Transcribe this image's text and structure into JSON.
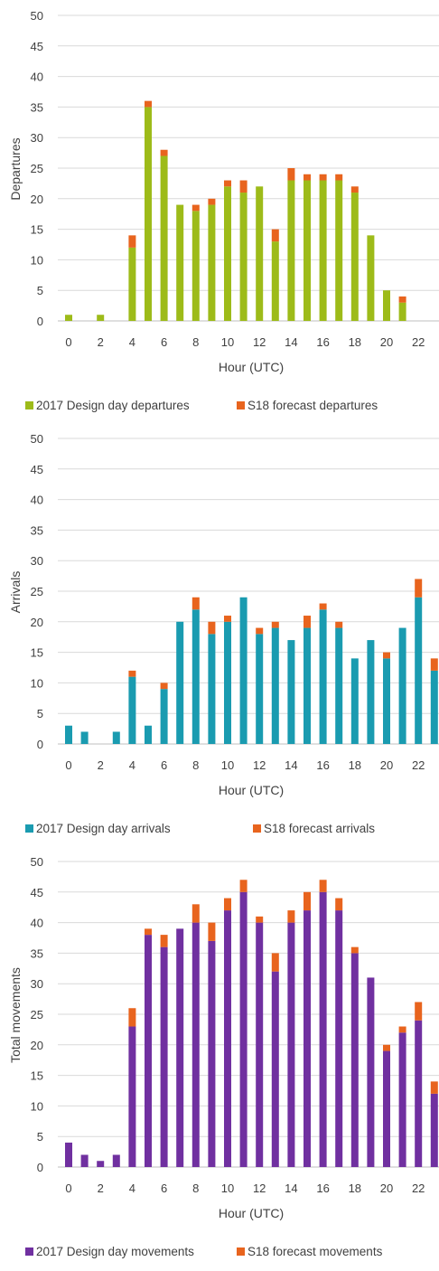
{
  "chart_data": [
    {
      "type": "bar",
      "stacked": true,
      "x": [
        0,
        1,
        2,
        3,
        4,
        5,
        6,
        7,
        8,
        9,
        10,
        11,
        12,
        13,
        14,
        15,
        16,
        17,
        18,
        19,
        20,
        21,
        22,
        23
      ],
      "x_tick_labels": [
        "0",
        "2",
        "4",
        "6",
        "8",
        "10",
        "12",
        "14",
        "16",
        "18",
        "20",
        "22"
      ],
      "xlabel": "Hour (UTC)",
      "ylabel": "Departures",
      "ylim": [
        0,
        50
      ],
      "y_ticks": [
        0,
        5,
        10,
        15,
        20,
        25,
        30,
        35,
        40,
        45,
        50
      ],
      "grid": true,
      "legend_position": "bottom",
      "series": [
        {
          "name": "2017 Design day departures",
          "color": "#9DBB19",
          "values": [
            1,
            0,
            1,
            0,
            12,
            35,
            27,
            19,
            18,
            19,
            22,
            21,
            22,
            13,
            23,
            23,
            23,
            23,
            21,
            14,
            5,
            3,
            0,
            0
          ]
        },
        {
          "name": "S18 forecast departures",
          "color": "#E8641E",
          "values": [
            0,
            0,
            0,
            0,
            2,
            1,
            1,
            0,
            1,
            1,
            1,
            2,
            0,
            2,
            2,
            1,
            1,
            1,
            1,
            0,
            0,
            1,
            0,
            0
          ]
        }
      ]
    },
    {
      "type": "bar",
      "stacked": true,
      "x": [
        0,
        1,
        2,
        3,
        4,
        5,
        6,
        7,
        8,
        9,
        10,
        11,
        12,
        13,
        14,
        15,
        16,
        17,
        18,
        19,
        20,
        21,
        22,
        23
      ],
      "x_tick_labels": [
        "0",
        "2",
        "4",
        "6",
        "8",
        "10",
        "12",
        "14",
        "16",
        "18",
        "20",
        "22"
      ],
      "xlabel": "Hour (UTC)",
      "ylabel": "Arrivals",
      "ylim": [
        0,
        50
      ],
      "y_ticks": [
        0,
        5,
        10,
        15,
        20,
        25,
        30,
        35,
        40,
        45,
        50
      ],
      "grid": true,
      "legend_position": "bottom",
      "series": [
        {
          "name": "2017 Design day arrivals",
          "color": "#1A9BB0",
          "values": [
            3,
            2,
            0,
            2,
            11,
            3,
            9,
            20,
            22,
            18,
            20,
            24,
            18,
            19,
            17,
            19,
            22,
            19,
            14,
            17,
            14,
            19,
            24,
            12
          ]
        },
        {
          "name": "S18 forecast arrivals",
          "color": "#E8641E",
          "values": [
            0,
            0,
            0,
            0,
            1,
            0,
            1,
            0,
            2,
            2,
            1,
            0,
            1,
            1,
            0,
            2,
            1,
            1,
            0,
            0,
            1,
            0,
            3,
            2
          ]
        }
      ]
    },
    {
      "type": "bar",
      "stacked": true,
      "x": [
        0,
        1,
        2,
        3,
        4,
        5,
        6,
        7,
        8,
        9,
        10,
        11,
        12,
        13,
        14,
        15,
        16,
        17,
        18,
        19,
        20,
        21,
        22,
        23
      ],
      "x_tick_labels": [
        "0",
        "2",
        "4",
        "6",
        "8",
        "10",
        "12",
        "14",
        "16",
        "18",
        "20",
        "22"
      ],
      "xlabel": "Hour (UTC)",
      "ylabel": "Total movements",
      "ylim": [
        0,
        50
      ],
      "y_ticks": [
        0,
        5,
        10,
        15,
        20,
        25,
        30,
        35,
        40,
        45,
        50
      ],
      "grid": true,
      "legend_position": "bottom",
      "series": [
        {
          "name": "2017 Design day movements",
          "color": "#7030A0",
          "values": [
            4,
            2,
            1,
            2,
            23,
            38,
            36,
            39,
            40,
            37,
            42,
            45,
            40,
            32,
            40,
            42,
            45,
            42,
            35,
            31,
            19,
            22,
            24,
            12
          ]
        },
        {
          "name": "S18 forecast movements",
          "color": "#E8641E",
          "values": [
            0,
            0,
            0,
            0,
            3,
            1,
            2,
            0,
            3,
            3,
            2,
            2,
            1,
            3,
            2,
            3,
            2,
            2,
            1,
            0,
            1,
            1,
            3,
            2
          ]
        }
      ]
    }
  ],
  "style": {
    "grid_color": "#D9D9D9",
    "axis_color": "#BFBFBF"
  }
}
